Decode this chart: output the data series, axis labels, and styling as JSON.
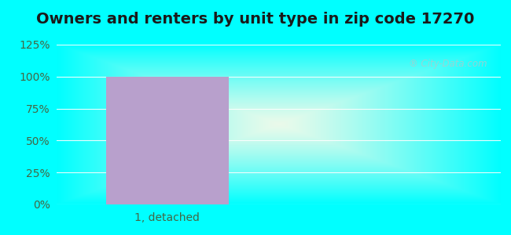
{
  "title": "Owners and renters by unit type in zip code 17270",
  "categories": [
    "1, detached"
  ],
  "values": [
    100
  ],
  "bar_color": "#b8a0cc",
  "bar_width": 0.55,
  "ylim": [
    0,
    125
  ],
  "yticks": [
    0,
    25,
    50,
    75,
    100,
    125
  ],
  "ytick_labels": [
    "0%",
    "25%",
    "50%",
    "75%",
    "100%",
    "125%"
  ],
  "title_fontsize": 14,
  "tick_fontsize": 10,
  "xlabel_fontsize": 10,
  "bg_cyan": "#00ffff",
  "grid_color": "#e0ede0",
  "watermark": "City-Data.com"
}
